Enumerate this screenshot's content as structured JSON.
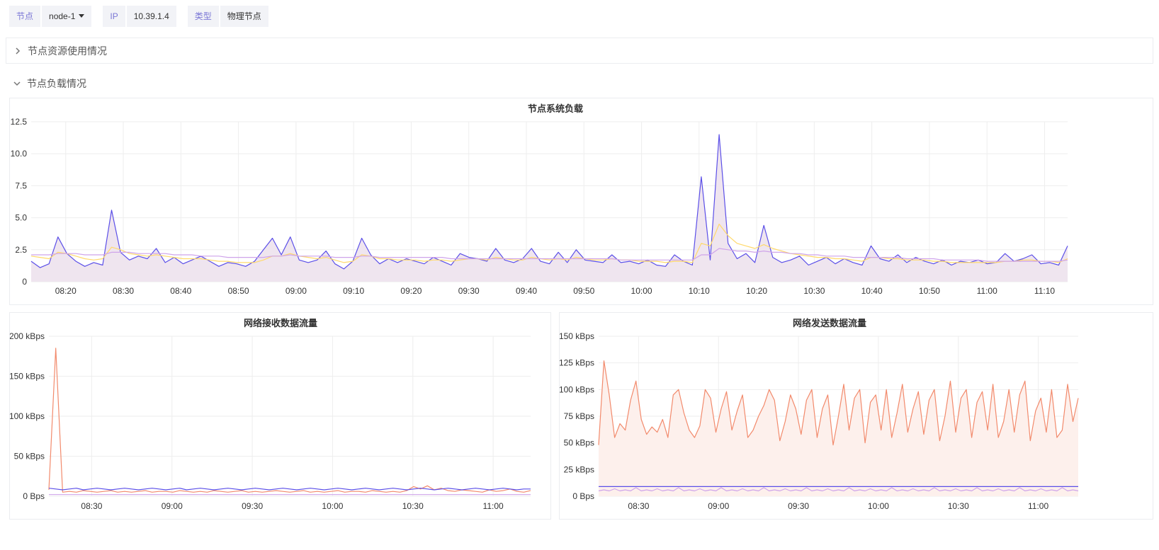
{
  "filters": {
    "node_label": "节点",
    "node_value": "node-1",
    "ip_label": "IP",
    "ip_value": "10.39.1.4",
    "type_label": "类型",
    "type_value": "物理节点"
  },
  "sections": {
    "resource_usage": "节点资源使用情况",
    "load": "节点负载情况"
  },
  "colors": {
    "accent": "#7b77d6",
    "series_blue": "#5b4fe8",
    "series_yellow": "#ffd96b",
    "series_purple": "#cfa4ea",
    "series_orange": "#f28a6c",
    "area_load": "#efe5ef",
    "area_tx": "#fdf0ec"
  },
  "chart_data": [
    {
      "type": "line",
      "title": "节点系统负载",
      "x_ticks": [
        "08:20",
        "08:30",
        "08:40",
        "08:50",
        "09:00",
        "09:10",
        "09:20",
        "09:30",
        "09:40",
        "09:50",
        "10:00",
        "10:10",
        "10:20",
        "10:30",
        "10:40",
        "10:50",
        "11:00",
        "11:10"
      ],
      "y_ticks": [
        "0",
        "2.5",
        "5.0",
        "7.5",
        "10.0",
        "12.5"
      ],
      "ylim": [
        0,
        12.5
      ],
      "xlim": [
        "08:14",
        "11:14"
      ],
      "series": [
        {
          "color": "#5b4fe8",
          "values": [
            1.6,
            1.1,
            1.4,
            3.5,
            2.2,
            1.6,
            1.2,
            1.5,
            1.3,
            5.6,
            2.3,
            1.7,
            2.0,
            1.8,
            2.6,
            1.5,
            1.9,
            1.4,
            1.7,
            2.0,
            1.6,
            1.2,
            1.5,
            1.4,
            1.2,
            1.6,
            2.5,
            3.4,
            2.1,
            3.5,
            1.7,
            1.5,
            1.7,
            2.4,
            1.4,
            1.0,
            1.6,
            3.4,
            2.1,
            1.4,
            1.8,
            1.5,
            1.8,
            1.6,
            1.4,
            1.9,
            1.6,
            1.3,
            2.2,
            1.9,
            1.8,
            1.6,
            2.6,
            1.7,
            1.5,
            1.8,
            2.6,
            1.6,
            1.4,
            2.3,
            1.5,
            2.5,
            1.7,
            1.6,
            1.5,
            2.1,
            1.5,
            1.6,
            1.4,
            1.7,
            1.3,
            1.2,
            2.1,
            1.6,
            1.3,
            8.2,
            1.7,
            11.5,
            3.0,
            1.8,
            2.2,
            1.5,
            4.4,
            1.9,
            1.5,
            1.7,
            2.0,
            1.3,
            1.6,
            1.9,
            1.4,
            1.8,
            1.5,
            1.3,
            2.8,
            1.8,
            1.6,
            2.1,
            1.5,
            1.9,
            1.6,
            1.4,
            1.7,
            1.3,
            1.6,
            1.5,
            1.7,
            1.4,
            1.5,
            2.2,
            1.6,
            1.8,
            2.1,
            1.4,
            1.5,
            1.3,
            2.8
          ]
        },
        {
          "color": "#ffd96b",
          "values": [
            2.0,
            1.9,
            1.8,
            2.3,
            2.2,
            2.0,
            1.8,
            1.7,
            1.8,
            2.7,
            2.5,
            2.2,
            2.1,
            2.0,
            2.1,
            2.0,
            1.9,
            1.8,
            1.8,
            1.8,
            1.7,
            1.6,
            1.6,
            1.5,
            1.5,
            1.5,
            1.7,
            2.0,
            2.0,
            2.2,
            2.0,
            1.9,
            1.8,
            1.9,
            1.7,
            1.5,
            1.6,
            2.1,
            2.0,
            1.8,
            1.8,
            1.7,
            1.7,
            1.7,
            1.6,
            1.7,
            1.7,
            1.6,
            1.7,
            1.8,
            1.8,
            1.7,
            1.9,
            1.8,
            1.7,
            1.7,
            1.9,
            1.8,
            1.7,
            1.8,
            1.7,
            1.9,
            1.8,
            1.7,
            1.7,
            1.8,
            1.7,
            1.7,
            1.6,
            1.6,
            1.6,
            1.5,
            1.6,
            1.6,
            1.5,
            3.0,
            2.8,
            4.5,
            3.6,
            3.0,
            2.8,
            2.6,
            2.9,
            2.6,
            2.4,
            2.2,
            2.1,
            2.0,
            1.9,
            1.9,
            1.8,
            1.8,
            1.7,
            1.6,
            1.9,
            1.9,
            1.8,
            1.8,
            1.7,
            1.7,
            1.7,
            1.6,
            1.6,
            1.5,
            1.5,
            1.5,
            1.5,
            1.5,
            1.5,
            1.6,
            1.6,
            1.7,
            1.7,
            1.6,
            1.6,
            1.5,
            1.8
          ]
        },
        {
          "color": "#cfa4ea",
          "values": [
            2.1,
            2.1,
            2.1,
            2.2,
            2.2,
            2.2,
            2.1,
            2.1,
            2.1,
            2.3,
            2.3,
            2.3,
            2.2,
            2.2,
            2.2,
            2.2,
            2.1,
            2.1,
            2.1,
            2.0,
            2.0,
            2.0,
            1.9,
            1.9,
            1.9,
            1.9,
            1.9,
            2.0,
            2.0,
            2.1,
            2.0,
            2.0,
            2.0,
            2.0,
            1.9,
            1.9,
            1.9,
            2.0,
            2.0,
            1.9,
            1.9,
            1.9,
            1.9,
            1.9,
            1.9,
            1.9,
            1.9,
            1.8,
            1.8,
            1.8,
            1.8,
            1.8,
            1.8,
            1.8,
            1.8,
            1.8,
            1.8,
            1.8,
            1.8,
            1.8,
            1.8,
            1.8,
            1.8,
            1.8,
            1.8,
            1.8,
            1.7,
            1.7,
            1.7,
            1.7,
            1.7,
            1.7,
            1.7,
            1.7,
            1.7,
            2.1,
            2.1,
            2.6,
            2.5,
            2.4,
            2.4,
            2.3,
            2.4,
            2.3,
            2.3,
            2.2,
            2.2,
            2.1,
            2.1,
            2.0,
            2.0,
            2.0,
            1.9,
            1.9,
            1.9,
            1.9,
            1.9,
            1.9,
            1.8,
            1.8,
            1.8,
            1.8,
            1.7,
            1.7,
            1.7,
            1.7,
            1.7,
            1.6,
            1.6,
            1.6,
            1.6,
            1.6,
            1.6,
            1.6,
            1.6,
            1.6,
            1.7
          ]
        }
      ]
    },
    {
      "type": "line",
      "title": "网络接收数据流量",
      "x_ticks": [
        "08:30",
        "09:00",
        "09:30",
        "10:00",
        "10:30",
        "11:00"
      ],
      "y_ticks": [
        "0 Bps",
        "50 kBps",
        "100 kBps",
        "150 kBps",
        "200 kBps"
      ],
      "ylim": [
        0,
        200
      ],
      "xlim": [
        "08:14",
        "11:14"
      ],
      "series": [
        {
          "color": "#f28a6c",
          "values": [
            8,
            185,
            5,
            6,
            5,
            7,
            6,
            5,
            6,
            7,
            5,
            6,
            5,
            6,
            7,
            5,
            6,
            6,
            5,
            7,
            6,
            5,
            6,
            5,
            7,
            6,
            5,
            6,
            7,
            5,
            6,
            5,
            6,
            7,
            6,
            5,
            6,
            7,
            5,
            6,
            5,
            6,
            7,
            5,
            6,
            6,
            5,
            7,
            6,
            5,
            6,
            5,
            7,
            12,
            9,
            13,
            8,
            10,
            7,
            6,
            8,
            7,
            6,
            5,
            8,
            6,
            7,
            9,
            6,
            5,
            7
          ]
        },
        {
          "color": "#5b4fe8",
          "values": [
            10,
            9,
            8,
            9,
            10,
            8,
            9,
            10,
            9,
            8,
            9,
            10,
            9,
            8,
            9,
            10,
            9,
            8,
            9,
            10,
            8,
            9,
            10,
            9,
            8,
            9,
            10,
            9,
            8,
            9,
            10,
            9,
            8,
            9,
            10,
            9,
            8,
            9,
            10,
            9,
            8,
            9,
            10,
            9,
            8,
            9,
            10,
            9,
            8,
            9,
            10,
            9,
            8,
            9,
            10,
            9,
            8,
            9,
            10,
            9,
            8,
            9,
            10,
            9,
            8,
            9,
            10,
            9,
            8,
            9,
            9
          ]
        },
        {
          "color": "#cfa4ea",
          "values": [
            2,
            2,
            2,
            2,
            2,
            2,
            2,
            2,
            2,
            2,
            2,
            2,
            2,
            2,
            2,
            2,
            2,
            2,
            2,
            2,
            2,
            2,
            2,
            2,
            2,
            2,
            2,
            2,
            2,
            2,
            2,
            2,
            2,
            2,
            2,
            2,
            2,
            2,
            2,
            2,
            2,
            2,
            2,
            2,
            2,
            2,
            2,
            2,
            2,
            2,
            2,
            2,
            2,
            2,
            2,
            2,
            2,
            2,
            2,
            2,
            2,
            2,
            2,
            2,
            2,
            2,
            2,
            2,
            2,
            2,
            2
          ]
        }
      ]
    },
    {
      "type": "area",
      "title": "网络发送数据流量",
      "x_ticks": [
        "08:30",
        "09:00",
        "09:30",
        "10:00",
        "10:30",
        "11:00"
      ],
      "y_ticks": [
        "0 Bps",
        "25 kBps",
        "50 kBps",
        "75 kBps",
        "100 kBps",
        "125 kBps",
        "150 kBps"
      ],
      "ylim": [
        0,
        150
      ],
      "xlim": [
        "08:15",
        "11:15"
      ],
      "series": [
        {
          "color": "#f28a6c",
          "values": [
            48,
            127,
            95,
            55,
            68,
            62,
            90,
            108,
            72,
            58,
            65,
            60,
            72,
            55,
            95,
            100,
            78,
            62,
            55,
            66,
            100,
            92,
            60,
            82,
            98,
            62,
            80,
            95,
            55,
            62,
            75,
            85,
            100,
            90,
            52,
            70,
            95,
            82,
            58,
            90,
            100,
            55,
            82,
            95,
            48,
            75,
            105,
            62,
            92,
            100,
            50,
            88,
            95,
            62,
            100,
            55,
            78,
            105,
            60,
            82,
            98,
            58,
            90,
            100,
            52,
            75,
            108,
            60,
            92,
            100,
            55,
            88,
            98,
            62,
            105,
            55,
            70,
            100,
            60,
            95,
            108,
            52,
            80,
            92,
            60,
            100,
            55,
            62,
            105,
            70,
            92
          ]
        },
        {
          "color": "#5b4fe8",
          "values": [
            9,
            9,
            9,
            9,
            9,
            9,
            9,
            9,
            9,
            9,
            9,
            9,
            9,
            9,
            9,
            9,
            9,
            9,
            9,
            9,
            9,
            9,
            9,
            9,
            9,
            9,
            9,
            9,
            9,
            9,
            9,
            9,
            9,
            9,
            9,
            9,
            9,
            9,
            9,
            9,
            9,
            9,
            9,
            9,
            9,
            9,
            9,
            9,
            9,
            9,
            9,
            9,
            9,
            9,
            9,
            9,
            9,
            9,
            9,
            9,
            9,
            9,
            9,
            9,
            9,
            9,
            9,
            9,
            9,
            9,
            9,
            9,
            9,
            9,
            9,
            9,
            9,
            9,
            9,
            9,
            9,
            9,
            9,
            9,
            9,
            9,
            9,
            9,
            9,
            9,
            9
          ]
        },
        {
          "color": "#cfa4ea",
          "values": [
            5,
            6,
            5,
            7,
            5,
            6,
            5,
            8,
            5,
            6,
            5,
            7,
            5,
            6,
            5,
            8,
            5,
            6,
            5,
            7,
            5,
            6,
            5,
            8,
            5,
            6,
            5,
            7,
            5,
            6,
            5,
            8,
            5,
            6,
            5,
            7,
            5,
            6,
            5,
            8,
            5,
            6,
            5,
            7,
            5,
            6,
            5,
            8,
            5,
            6,
            5,
            7,
            5,
            6,
            5,
            8,
            5,
            6,
            5,
            7,
            5,
            6,
            5,
            8,
            5,
            6,
            5,
            7,
            5,
            6,
            5,
            8,
            5,
            6,
            5,
            7,
            5,
            6,
            5,
            8,
            5,
            6,
            5,
            7,
            5,
            6,
            5,
            8,
            5,
            6,
            5
          ]
        }
      ]
    }
  ]
}
